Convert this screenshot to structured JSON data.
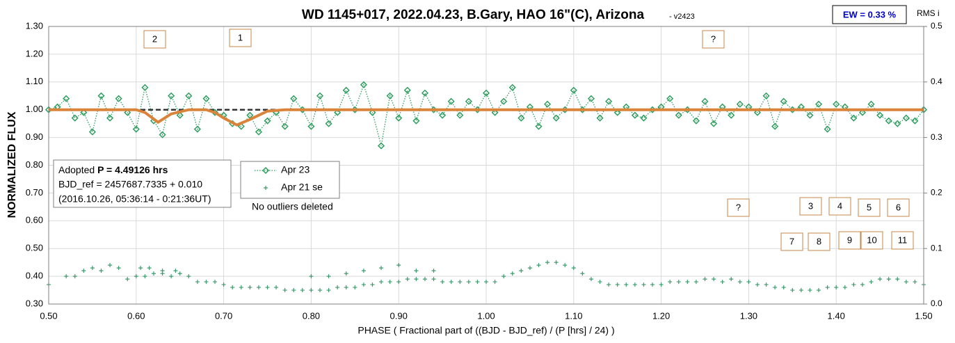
{
  "chart_data": {
    "type": "scatter",
    "title": "WD 1145+017, 2022.04.23, B.Gary, HAO 16\"(C), Arizona",
    "subtitle": "- v2423",
    "ew_label": "EW = 0.33 %",
    "y2_label": "RMS i",
    "y_label": "NORMALIZED FLUX",
    "x_label": "PHASE ( Fractional part of ((BJD - BJD_ref) / (P [hrs] / 24) )",
    "info": {
      "prefix": "Adopted ",
      "period": "P = 4.49126 hrs",
      "line2": "BJD_ref = 2457687.7335 + 0.010",
      "line3": "(2016.10.26, 05:36:14 - 0:21:36UT)"
    },
    "note": "No outliers deleted",
    "markers": [
      "2",
      "1",
      "?",
      "?",
      "3",
      "4",
      "5",
      "6",
      "7",
      "8",
      "9",
      "10",
      "11"
    ],
    "xlim": [
      0.5,
      1.5
    ],
    "ylim": [
      0.3,
      1.3
    ],
    "y2lim": [
      0,
      0.5
    ],
    "grid": true,
    "xticks": [
      {
        "value": 0.5,
        "label": "0.50"
      },
      {
        "value": 0.6,
        "label": "0.60"
      },
      {
        "value": 0.7,
        "label": "0.70"
      },
      {
        "value": 0.8,
        "label": "0.80"
      },
      {
        "value": 0.9,
        "label": "0.90"
      },
      {
        "value": 1.0,
        "label": "1.00"
      },
      {
        "value": 1.1,
        "label": "1.10"
      },
      {
        "value": 1.2,
        "label": "1.20"
      },
      {
        "value": 1.3,
        "label": "1.30"
      },
      {
        "value": 1.4,
        "label": "1.40"
      },
      {
        "value": 1.5,
        "label": "1.50"
      }
    ],
    "yticks": [
      {
        "value": 0.3,
        "label": "0.30"
      },
      {
        "value": 0.4,
        "label": "0.40"
      },
      {
        "value": 0.5,
        "label": "0.50"
      },
      {
        "value": 0.6,
        "label": "0.60"
      },
      {
        "value": 0.7,
        "label": "0.70"
      },
      {
        "value": 0.8,
        "label": "0.80"
      },
      {
        "value": 0.9,
        "label": "0.90"
      },
      {
        "value": 1.0,
        "label": "1.00"
      },
      {
        "value": 1.1,
        "label": "1.10"
      },
      {
        "value": 1.2,
        "label": "1.20"
      },
      {
        "value": 1.3,
        "label": "1.30"
      }
    ],
    "y2ticks": [
      {
        "value": 0,
        "label": "0.0"
      },
      0.1,
      0.2,
      0.3,
      0.4,
      0.5
    ],
    "reference_lines": [
      {
        "y": 1.0,
        "x": [
          0.5,
          0.8
        ],
        "color": "#9a9a9a"
      },
      {
        "y": 1.0,
        "x": [
          0.5,
          1.5
        ],
        "color": "#333333"
      }
    ],
    "series": [
      {
        "name": "Apr 23",
        "style": "diamond",
        "color": "#2e9e5e",
        "x": [
          0.5,
          0.51,
          0.52,
          0.53,
          0.54,
          0.55,
          0.56,
          0.57,
          0.58,
          0.59,
          0.6,
          0.61,
          0.62,
          0.63,
          0.64,
          0.65,
          0.66,
          0.67,
          0.68,
          0.69,
          0.7,
          0.71,
          0.72,
          0.73,
          0.74,
          0.75,
          0.76,
          0.77,
          0.78,
          0.79,
          0.8,
          0.81,
          0.82,
          0.83,
          0.84,
          0.85,
          0.86,
          0.87,
          0.88,
          0.89,
          0.9,
          0.91,
          0.92,
          0.93,
          0.94,
          0.95,
          0.96,
          0.97,
          0.98,
          0.99,
          1.0,
          1.01,
          1.02,
          1.03,
          1.04,
          1.05,
          1.06,
          1.07,
          1.08,
          1.09,
          1.1,
          1.11,
          1.12,
          1.13,
          1.14,
          1.15,
          1.16,
          1.17,
          1.18,
          1.19,
          1.2,
          1.21,
          1.22,
          1.23,
          1.24,
          1.25,
          1.26,
          1.27,
          1.28,
          1.29,
          1.3,
          1.31,
          1.32,
          1.33,
          1.34,
          1.35,
          1.36,
          1.37,
          1.38,
          1.39,
          1.4,
          1.41,
          1.42,
          1.43,
          1.44,
          1.45,
          1.46,
          1.47,
          1.48,
          1.49,
          1.5
        ],
        "values": [
          1.0,
          1.01,
          1.04,
          0.97,
          0.99,
          0.92,
          1.05,
          0.97,
          1.04,
          0.99,
          0.93,
          1.08,
          0.96,
          0.91,
          1.05,
          0.98,
          1.05,
          0.93,
          1.04,
          0.99,
          0.98,
          0.95,
          0.94,
          0.98,
          0.92,
          0.96,
          0.99,
          0.94,
          1.04,
          1.0,
          0.94,
          1.05,
          0.95,
          0.99,
          1.07,
          1.0,
          1.09,
          0.99,
          0.87,
          1.05,
          0.97,
          1.07,
          0.96,
          1.06,
          1.0,
          0.98,
          1.03,
          0.98,
          1.03,
          1.0,
          1.06,
          0.99,
          1.03,
          1.08,
          0.97,
          1.01,
          0.94,
          1.02,
          0.97,
          1.0,
          1.07,
          1.0,
          1.04,
          0.97,
          1.03,
          0.99,
          1.01,
          0.98,
          0.97,
          1.0,
          1.01,
          1.04,
          0.98,
          1.0,
          0.96,
          1.03,
          0.95,
          1.01,
          0.98,
          1.02,
          1.01,
          0.99,
          1.05,
          0.94,
          1.03,
          1.0,
          1.01,
          0.98,
          1.02,
          0.93,
          1.02,
          1.01,
          0.97,
          0.99,
          1.02,
          0.98,
          0.96,
          0.95,
          0.97,
          0.96,
          1.0
        ]
      },
      {
        "name": "Apr 21 se",
        "style": "plus",
        "color": "#3a9a6a",
        "x": [
          0.5,
          0.52,
          0.53,
          0.54,
          0.55,
          0.56,
          0.57,
          0.58,
          0.59,
          0.6,
          0.61,
          0.62,
          0.63,
          0.64,
          0.65,
          0.66,
          0.67,
          0.68,
          0.69,
          0.7,
          0.71,
          0.72,
          0.73,
          0.74,
          0.75,
          0.76,
          0.77,
          0.78,
          0.79,
          0.8,
          0.81,
          0.82,
          0.83,
          0.84,
          0.85,
          0.86,
          0.87,
          0.88,
          0.89,
          0.9,
          0.91,
          0.92,
          0.93,
          0.94,
          0.95,
          0.96,
          0.97,
          0.98,
          0.99,
          1.0,
          1.01,
          1.02,
          1.03,
          1.04,
          1.05,
          1.06,
          1.07,
          1.08,
          1.09,
          1.1,
          1.11,
          1.12,
          1.13,
          1.14,
          1.15,
          1.16,
          1.17,
          1.18,
          1.19,
          1.2,
          1.21,
          1.22,
          1.23,
          1.24,
          1.25,
          1.26,
          1.27,
          1.28,
          1.29,
          1.3,
          1.31,
          1.32,
          1.33,
          1.34,
          1.35,
          1.36,
          1.37,
          1.38,
          1.39,
          1.4,
          1.41,
          1.42,
          1.43,
          1.44,
          1.45,
          1.46,
          1.47,
          1.48,
          1.49,
          1.5,
          0.605,
          0.615,
          0.63,
          0.645,
          0.8,
          0.82,
          0.84,
          0.86,
          0.88,
          0.9,
          0.92,
          0.94
        ],
        "values": [
          0.37,
          0.4,
          0.4,
          0.42,
          0.43,
          0.42,
          0.44,
          0.43,
          0.39,
          0.4,
          0.4,
          0.41,
          0.41,
          0.4,
          0.41,
          0.4,
          0.38,
          0.38,
          0.38,
          0.37,
          0.36,
          0.36,
          0.36,
          0.36,
          0.36,
          0.36,
          0.35,
          0.35,
          0.35,
          0.35,
          0.35,
          0.35,
          0.36,
          0.36,
          0.36,
          0.37,
          0.37,
          0.38,
          0.38,
          0.38,
          0.39,
          0.39,
          0.39,
          0.39,
          0.38,
          0.38,
          0.38,
          0.38,
          0.38,
          0.38,
          0.38,
          0.4,
          0.41,
          0.42,
          0.43,
          0.44,
          0.45,
          0.45,
          0.44,
          0.43,
          0.41,
          0.39,
          0.38,
          0.37,
          0.37,
          0.37,
          0.37,
          0.37,
          0.37,
          0.37,
          0.38,
          0.38,
          0.38,
          0.38,
          0.39,
          0.39,
          0.38,
          0.39,
          0.38,
          0.38,
          0.37,
          0.37,
          0.36,
          0.36,
          0.35,
          0.35,
          0.35,
          0.35,
          0.36,
          0.36,
          0.36,
          0.37,
          0.37,
          0.38,
          0.39,
          0.39,
          0.39,
          0.38,
          0.38,
          0.37,
          0.43,
          0.43,
          0.42,
          0.42,
          0.4,
          0.4,
          0.41,
          0.42,
          0.43,
          0.44,
          0.42,
          0.42
        ]
      },
      {
        "style": "line",
        "color": "#d9843a",
        "x": [
          0.5,
          0.6,
          0.61,
          0.625,
          0.64,
          0.66,
          0.68,
          0.69,
          0.7,
          0.715,
          0.73,
          0.75,
          0.77,
          1.5
        ],
        "values": [
          1.0,
          1.0,
          0.99,
          0.955,
          0.985,
          1.0,
          1.0,
          0.99,
          0.97,
          0.945,
          0.965,
          0.995,
          1.0,
          1.0
        ]
      }
    ]
  }
}
